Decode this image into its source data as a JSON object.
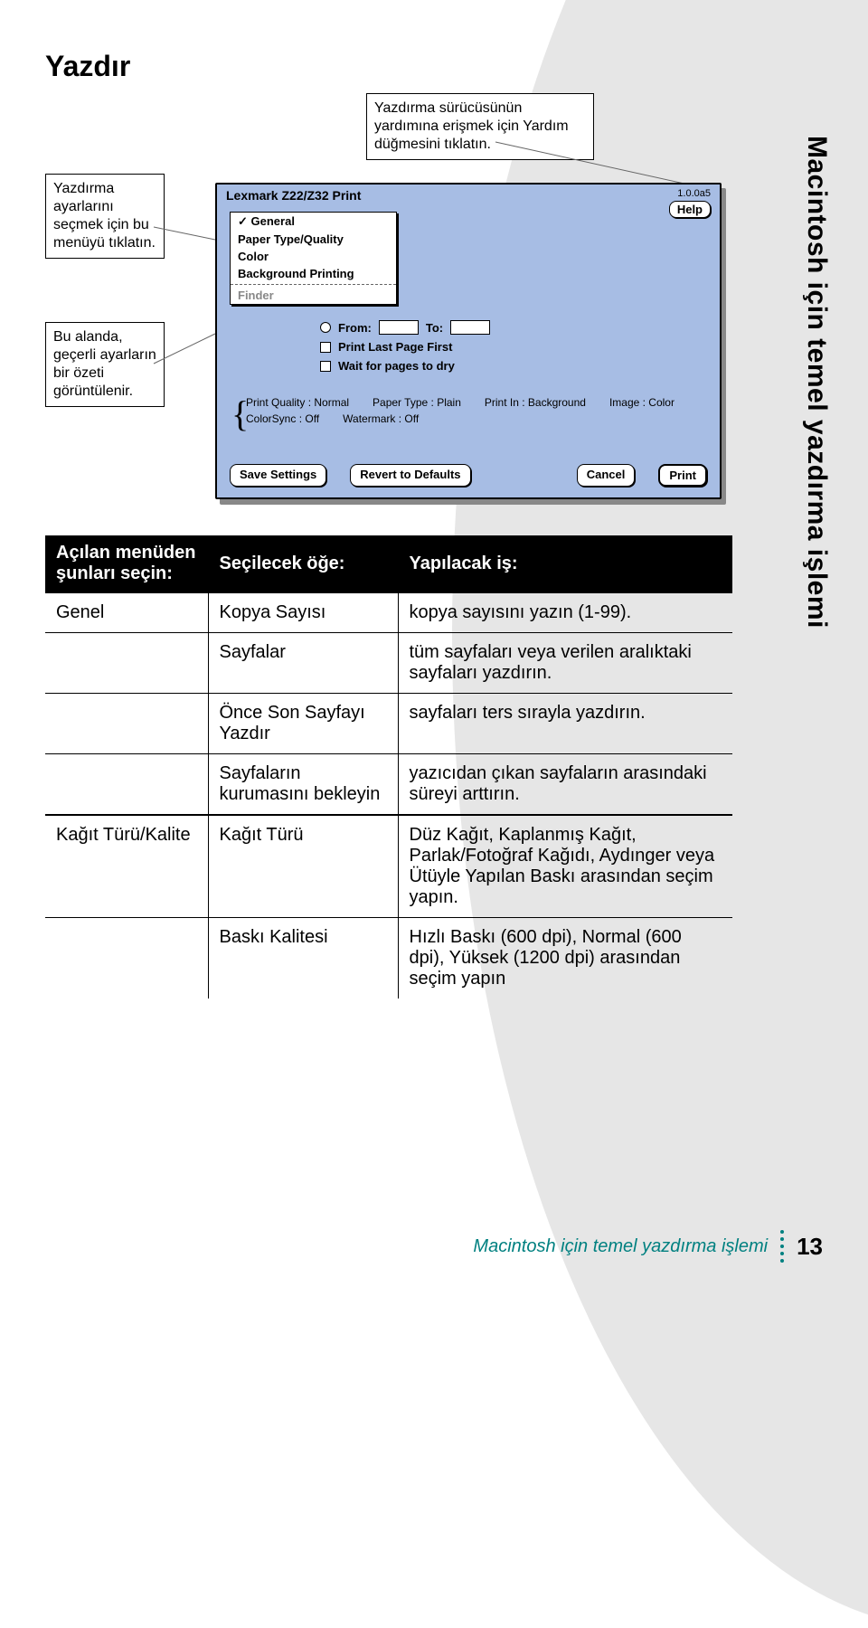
{
  "page": {
    "title": "Yazdır",
    "side_title": "Macintosh için temel yazdırma işlemi",
    "footer_text": "Macintosh için temel yazdırma işlemi",
    "page_number": "13"
  },
  "callouts": {
    "top": "Yazdırma sürücüsünün yardımına erişmek için Yardım düğmesini tıklatın.",
    "left1": "Yazdırma ayarlarını seçmek için bu menüyü tıklatın.",
    "left2": "Bu alanda, geçerli ayarların bir özeti görüntülenir."
  },
  "dialog": {
    "title": "Lexmark Z22/Z32 Print",
    "version": "1.0.0a5",
    "help": "Help",
    "menu": {
      "items": [
        "General",
        "Paper Type/Quality",
        "Color",
        "Background Printing"
      ],
      "greyed": "Finder"
    },
    "body": {
      "from": "From:",
      "to": "To:",
      "plp": "Print Last Page First",
      "wait": "Wait for pages to dry"
    },
    "props": {
      "pq": "Print Quality : Normal",
      "pt": "Paper Type : Plain",
      "pi": "Print In : Background",
      "img": "Image : Color",
      "cs": "ColorSync : Off",
      "wm": "Watermark : Off"
    },
    "buttons": {
      "save": "Save Settings",
      "revert": "Revert to Defaults",
      "cancel": "Cancel",
      "print": "Print"
    }
  },
  "table": {
    "head": [
      "Açılan menüden şunları seçin:",
      "Seçilecek öğe:",
      "Yapılacak iş:"
    ],
    "rows": [
      {
        "group": "Genel",
        "item": "Kopya Sayısı",
        "action": "kopya sayısını yazın (1-99).",
        "heavy": true
      },
      {
        "group": "",
        "item": "Sayfalar",
        "action": "tüm sayfaları veya verilen aralıktaki sayfaları yazdırın.",
        "heavy": false
      },
      {
        "group": "",
        "item": "Önce Son Sayfayı Yazdır",
        "action": "sayfaları ters sırayla yazdırın.",
        "heavy": false
      },
      {
        "group": "",
        "item": "Sayfaların kurumasını bekleyin",
        "action": "yazıcıdan çıkan sayfaların arasındaki süreyi arttırın.",
        "heavy": false
      },
      {
        "group": "Kağıt Türü/Kalite",
        "item": "Kağıt Türü",
        "action": "Düz Kağıt, Kaplanmış Kağıt, Parlak/Fotoğraf Kağıdı, Aydınger veya Ütüyle Yapılan Baskı arasından seçim yapın.",
        "heavy": true
      },
      {
        "group": "",
        "item": "Baskı Kalitesi",
        "action": "Hızlı Baskı (600 dpi), Normal (600 dpi), Yüksek (1200 dpi) arasından seçim yapın",
        "heavy": false
      }
    ]
  },
  "colors": {
    "dialog_bg": "#a7bde4",
    "shadow": "#888888",
    "grey_sidebar": "#e6e6e6",
    "teal": "#008080"
  }
}
